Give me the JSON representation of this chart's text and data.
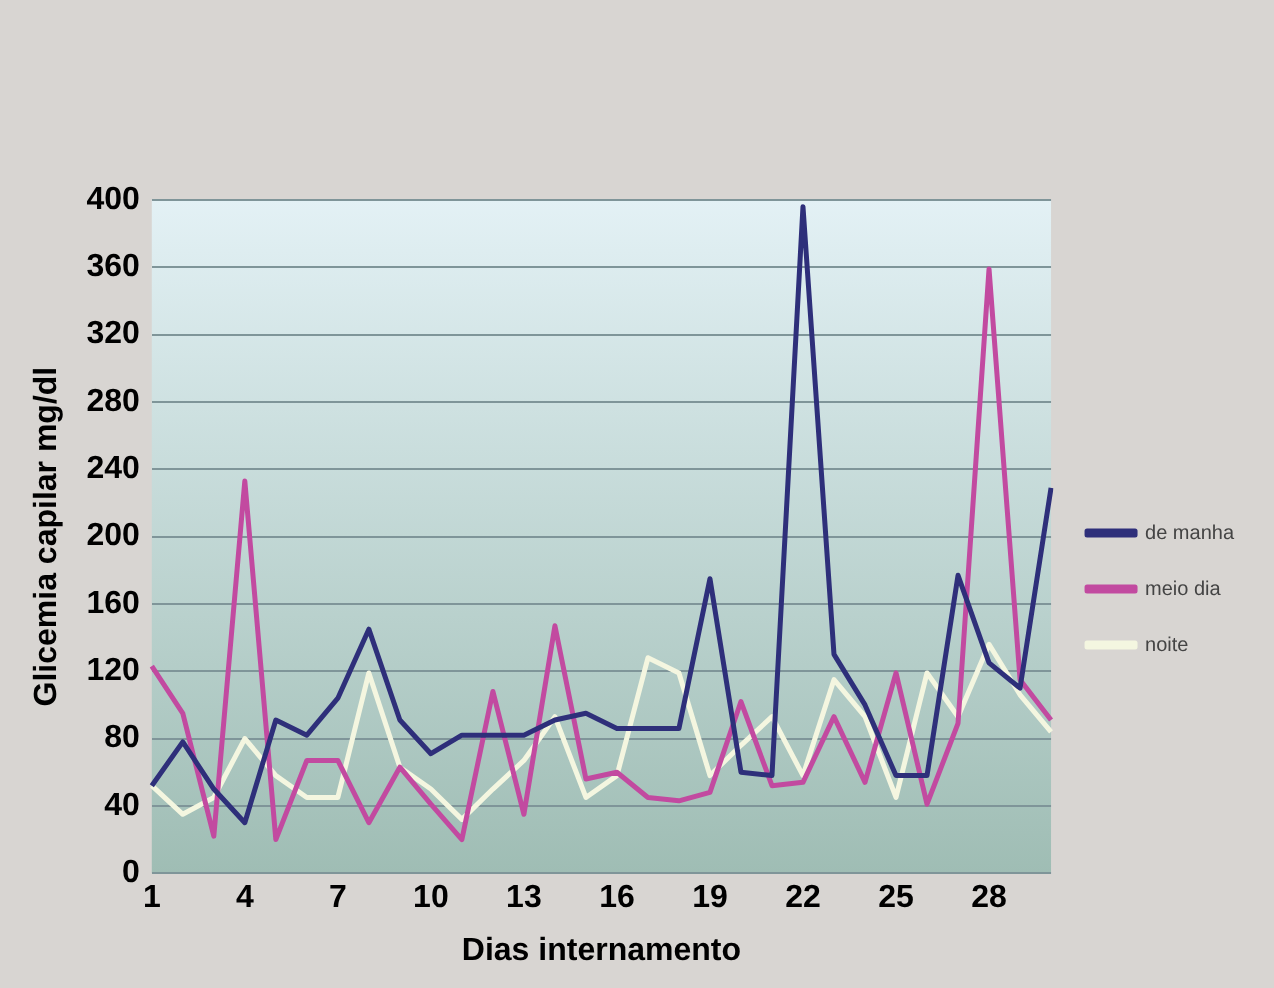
{
  "chart_data": {
    "type": "line",
    "xlabel": "Dias internamento",
    "ylabel": "Glicemia capilar mg/dl",
    "categories": [
      "1",
      null,
      null,
      "4",
      null,
      null,
      "7",
      null,
      null,
      "10",
      null,
      null,
      "13",
      null,
      null,
      "16",
      null,
      null,
      "19",
      null,
      null,
      "22",
      null,
      null,
      "25",
      null,
      null,
      "28",
      null,
      null
    ],
    "series": [
      {
        "name": "de manha",
        "color": "#2e2f7a",
        "values": [
          52,
          78,
          50,
          30,
          91,
          82,
          104,
          145,
          91,
          71,
          82,
          82,
          82,
          91,
          95,
          86,
          86,
          86,
          175,
          60,
          58,
          396,
          130,
          100,
          58,
          58,
          177,
          125,
          110,
          229
        ]
      },
      {
        "name": "meio dia",
        "color": "#c24aa0",
        "values": [
          123,
          95,
          22,
          233,
          20,
          67,
          67,
          30,
          63,
          41,
          20,
          108,
          35,
          147,
          56,
          60,
          45,
          43,
          48,
          102,
          52,
          54,
          93,
          54,
          119,
          41,
          89,
          359,
          115,
          91
        ]
      },
      {
        "name": "noite",
        "color": "#f4f6e0",
        "values": [
          52,
          35,
          45,
          80,
          58,
          45,
          45,
          119,
          63,
          50,
          32,
          50,
          67,
          93,
          45,
          58,
          128,
          119,
          58,
          76,
          93,
          58,
          115,
          93,
          45,
          119,
          93,
          136,
          106,
          84
        ]
      }
    ],
    "ylim": [
      0,
      400
    ],
    "yticks": [
      0,
      40,
      80,
      120,
      160,
      200,
      240,
      280,
      320,
      360,
      400
    ],
    "grid": "y",
    "legend": "right",
    "marker": "none",
    "line_style": "solid"
  }
}
